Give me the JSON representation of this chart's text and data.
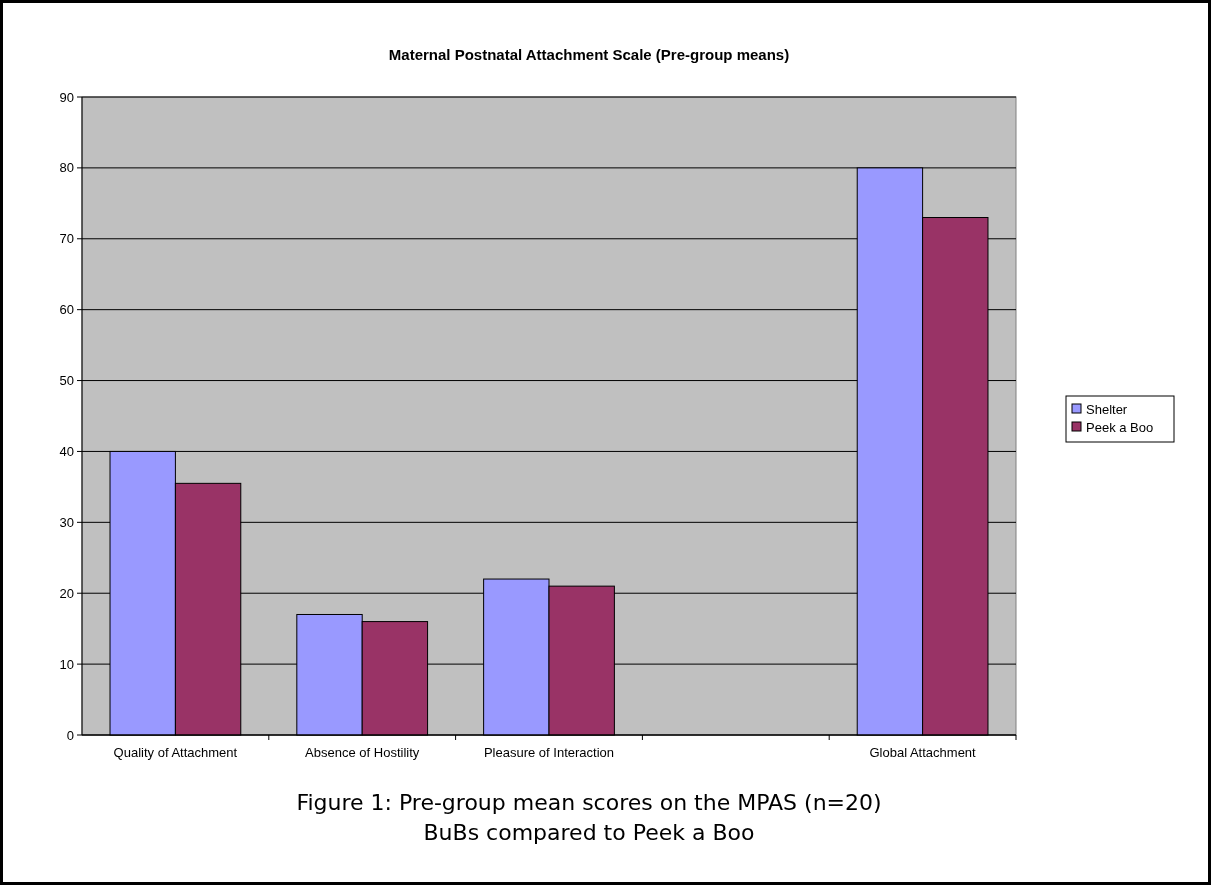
{
  "chart_data": {
    "type": "bar",
    "title": "Maternal Postnatal Attachment Scale (Pre-group means)",
    "categories": [
      "Quality of Attachment",
      "Absence of Hostility",
      "Pleasure of Interaction",
      null,
      "Global Attachment"
    ],
    "series": [
      {
        "name": "Shelter",
        "color": "#9999ff",
        "values": [
          40,
          17,
          22,
          null,
          80
        ]
      },
      {
        "name": "Peek a Boo",
        "color": "#993366",
        "values": [
          35.5,
          16,
          21,
          null,
          73
        ]
      }
    ],
    "ylim": [
      0,
      90
    ],
    "yticks": [
      0,
      10,
      20,
      30,
      40,
      50,
      60,
      70,
      80,
      90
    ],
    "grid": "y",
    "legend": "right",
    "annotations": [
      "Figure 1: Pre-group mean scores on the MPAS (n=20)",
      "BuBs compared to Peek a Boo"
    ]
  }
}
